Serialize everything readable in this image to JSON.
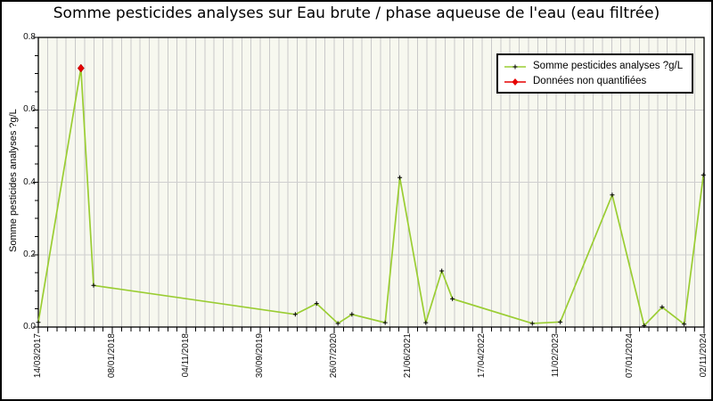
{
  "chart_data": {
    "type": "line",
    "title": "Somme pesticides analyses sur Eau brute / phase aqueuse de l'eau (eau filtrée)",
    "xlabel": "",
    "ylabel": "Somme pesticides analyses ?g/L",
    "ylim": [
      0.0,
      0.8
    ],
    "y_ticks": [
      "0.0",
      "0.2",
      "0.4",
      "0.6",
      "0.8"
    ],
    "y_minor_step": 0.05,
    "x_tick_labels": [
      "14/03/2017",
      "08/01/2018",
      "04/11/2018",
      "30/09/2019",
      "26/07/2020",
      "21/06/2021",
      "17/04/2022",
      "11/02/2023",
      "07/01/2024",
      "02/11/2024"
    ],
    "x_label_rotation_deg": 90,
    "grid": {
      "v_divisions": 72,
      "x_major_every": 8,
      "h_values": [
        0.2,
        0.4,
        0.6
      ],
      "grid_on": true
    },
    "legend": {
      "position": "top-right",
      "entries": [
        {
          "label": "Somme pesticides analyses ?g/L",
          "marker": "black-plus-on-green-line"
        },
        {
          "label": "Données non quantifiées",
          "marker": "red-diamond-on-red-line"
        }
      ]
    },
    "series": [
      {
        "name": "Somme pesticides analyses ?g/L",
        "points": [
          {
            "x_frac": 0.0,
            "y": 0.013,
            "non_quantified": false
          },
          {
            "x_frac": 0.064,
            "y": 0.715,
            "non_quantified": true
          },
          {
            "x_frac": 0.083,
            "y": 0.115,
            "non_quantified": false
          },
          {
            "x_frac": 0.386,
            "y": 0.035,
            "non_quantified": false
          },
          {
            "x_frac": 0.418,
            "y": 0.065,
            "non_quantified": false
          },
          {
            "x_frac": 0.45,
            "y": 0.01,
            "non_quantified": false
          },
          {
            "x_frac": 0.471,
            "y": 0.035,
            "non_quantified": false
          },
          {
            "x_frac": 0.521,
            "y": 0.012,
            "non_quantified": false
          },
          {
            "x_frac": 0.543,
            "y": 0.413,
            "non_quantified": false
          },
          {
            "x_frac": 0.582,
            "y": 0.012,
            "non_quantified": false
          },
          {
            "x_frac": 0.606,
            "y": 0.155,
            "non_quantified": false
          },
          {
            "x_frac": 0.622,
            "y": 0.078,
            "non_quantified": false
          },
          {
            "x_frac": 0.742,
            "y": 0.01,
            "non_quantified": false
          },
          {
            "x_frac": 0.784,
            "y": 0.014,
            "non_quantified": false
          },
          {
            "x_frac": 0.862,
            "y": 0.365,
            "non_quantified": false
          },
          {
            "x_frac": 0.91,
            "y": 0.004,
            "non_quantified": false
          },
          {
            "x_frac": 0.937,
            "y": 0.055,
            "non_quantified": false
          },
          {
            "x_frac": 0.97,
            "y": 0.008,
            "non_quantified": false
          },
          {
            "x_frac": 0.999,
            "y": 0.42,
            "non_quantified": false
          }
        ]
      }
    ],
    "colors": {
      "line": "#9acd32",
      "point_marker": "#000000",
      "non_quantified": "#e60000",
      "plot_bg": "#f7f8ef",
      "grid": "#c9c9c9",
      "axis": "#000000"
    }
  }
}
